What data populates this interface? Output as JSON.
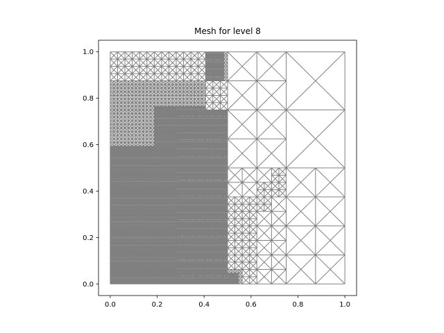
{
  "chart_data": {
    "type": "mesh",
    "title": "Mesh for level 8",
    "xlabel": "",
    "ylabel": "",
    "xlim": [
      -0.05,
      1.05
    ],
    "ylim": [
      -0.05,
      1.05
    ],
    "x_ticks": [
      "0.0",
      "0.2",
      "0.4",
      "0.6",
      "0.8",
      "1.0"
    ],
    "y_ticks": [
      "0.0",
      "0.2",
      "0.4",
      "0.6",
      "0.8",
      "1.0"
    ],
    "grid": false,
    "domain": {
      "x": [
        0,
        1
      ],
      "y": [
        0,
        1
      ]
    },
    "colors": {
      "mesh": "#808080",
      "axes": "#000000",
      "background": "#ffffff"
    }
  }
}
